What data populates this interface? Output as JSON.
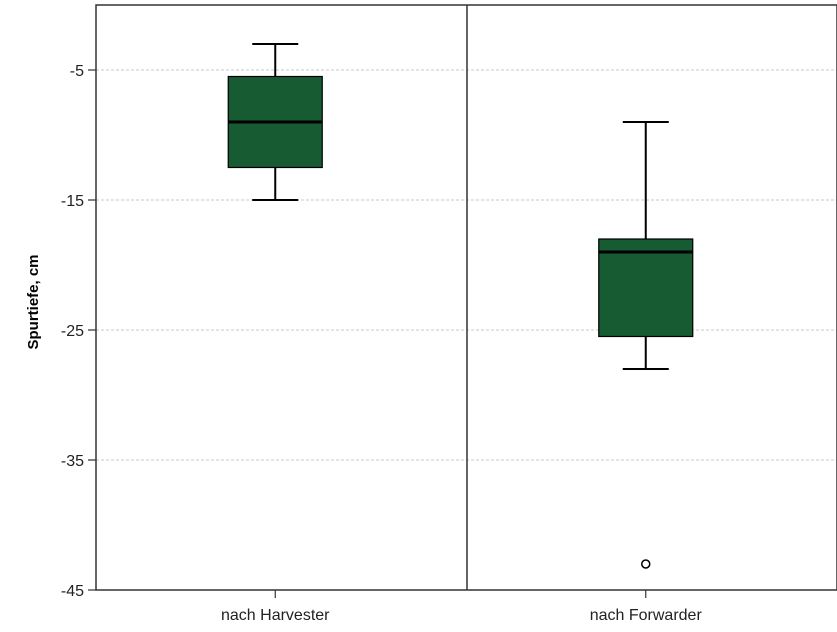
{
  "chart_data": {
    "type": "boxplot",
    "title": "",
    "xlabel": "",
    "ylabel": "Spurtiefe, cm",
    "ylim": [
      -45,
      0
    ],
    "yticks": [
      -5,
      -15,
      -25,
      -35,
      -45
    ],
    "grid": true,
    "box_color": "#165B32",
    "categories": [
      "nach Harvester",
      "nach Forwarder"
    ],
    "boxes": [
      {
        "category": "nach Harvester",
        "whisker_low": -15,
        "q1": -12.5,
        "median": -9,
        "q3": -5.5,
        "whisker_high": -3,
        "outliers": []
      },
      {
        "category": "nach Forwarder",
        "whisker_low": -28,
        "q1": -25.5,
        "median": -19,
        "q3": -18,
        "whisker_high": -9,
        "outliers": [
          -43
        ]
      }
    ]
  }
}
